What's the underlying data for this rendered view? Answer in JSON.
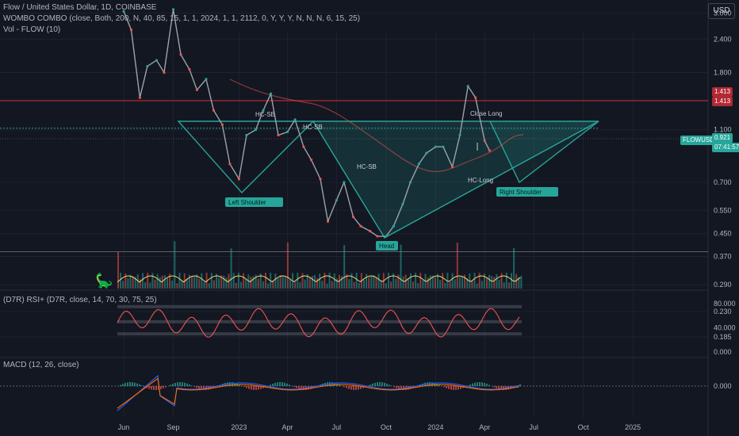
{
  "header": {
    "title": "Flow / United States Dollar, 1D, COINBASE",
    "indicator1": "WOMBO COMBO (close, Both, 200, N, 40, 85, 15, 1, 1, 2024, 1, 1, 2112, 0, Y, Y, Y, N, N, N, 6, 15, 25)",
    "indicator2": "Vol - FLOW (10)",
    "currency_button": "USD"
  },
  "chart_data": [
    {
      "type": "line",
      "title": "Flow / United States Dollar, 1D, COINBASE",
      "y_scale": "log",
      "x_ticks": [
        "Jun",
        "Sep",
        "2023",
        "Apr",
        "Jul",
        "Oct",
        "2024",
        "Apr",
        "Jul",
        "Oct",
        "2025"
      ],
      "y_ticks": [
        "3.000",
        "2.400",
        "1.800",
        "1.100",
        "0.700",
        "0.550",
        "0.450",
        "0.370",
        "0.290",
        "0.230",
        "0.185"
      ],
      "series": [
        {
          "x": [
            "2022-06-01",
            "2022-06-15",
            "2022-07-01",
            "2022-07-15",
            "2022-08-01",
            "2022-08-15",
            "2022-09-01",
            "2022-09-15",
            "2022-10-01",
            "2022-10-15",
            "2022-11-01",
            "2022-11-15",
            "2022-12-01",
            "2022-12-15",
            "2023-01-01",
            "2023-01-15",
            "2023-02-01",
            "2023-02-15",
            "2023-03-01",
            "2023-03-15",
            "2023-04-01",
            "2023-04-15",
            "2023-05-01",
            "2023-05-15",
            "2023-06-01",
            "2023-06-15",
            "2023-07-01",
            "2023-07-15",
            "2023-08-01",
            "2023-08-15",
            "2023-09-01",
            "2023-09-15",
            "2023-10-01",
            "2023-10-15",
            "2023-11-01",
            "2023-11-15",
            "2023-12-01",
            "2023-12-15",
            "2024-01-01",
            "2024-01-15",
            "2024-02-01",
            "2024-02-15",
            "2024-03-01",
            "2024-03-15",
            "2024-04-01",
            "2024-04-10"
          ],
          "values": [
            3.05,
            2.6,
            1.45,
            1.9,
            2.0,
            1.8,
            3.1,
            2.1,
            1.85,
            1.55,
            1.7,
            1.3,
            1.15,
            0.82,
            0.72,
            1.05,
            1.1,
            1.3,
            1.5,
            1.05,
            1.08,
            1.2,
            0.95,
            0.85,
            0.72,
            0.5,
            0.6,
            0.7,
            0.52,
            0.48,
            0.46,
            0.44,
            0.44,
            0.48,
            0.58,
            0.7,
            0.82,
            0.9,
            0.95,
            0.95,
            0.8,
            1.05,
            1.6,
            1.45,
            1.0,
            0.92
          ]
        }
      ],
      "overlays": {
        "resistance": 1.413,
        "neckline": 1.1,
        "support": 0.38,
        "pattern_labels": [
          "Left Shoulder",
          "Head",
          "Right Shoulder"
        ],
        "signal_labels": [
          "HC-SB",
          "HC-SB",
          "HC-SB",
          "Close Long",
          "HC-Long"
        ]
      },
      "price_tags": {
        "symbol": "FLOWUSD",
        "last": "0.921",
        "countdown": "07:41:57",
        "level1": "1.413",
        "level2": "1.413"
      }
    },
    {
      "type": "bar",
      "title": "Vol - FLOW (10)"
    },
    {
      "type": "line",
      "title": "(D7R) RSI+ (D7R, close, 14, 70, 30, 75, 25)",
      "y_ticks": [
        "80.000",
        "40.000",
        "0.000"
      ],
      "levels": [
        75,
        50,
        30
      ]
    },
    {
      "type": "line",
      "title": "MACD (12, 26, close)",
      "y_ticks": [
        "0.000"
      ],
      "series": [
        {
          "name": "MACD"
        },
        {
          "name": "Signal"
        }
      ]
    }
  ],
  "colors": {
    "background": "#131722",
    "grid": "#1e222d",
    "candle_up": "#26a69a",
    "candle_down": "#ef5350",
    "pattern": "#26a69a",
    "resistance": "#b22833",
    "volume_line": "#f5d36b",
    "macd": "#2962ff",
    "signal": "#ff6d00"
  }
}
